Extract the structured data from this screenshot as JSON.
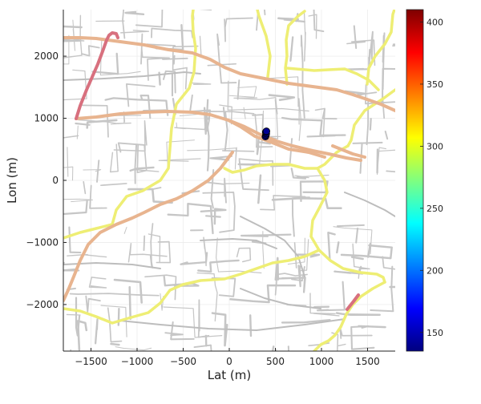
{
  "chart_data": {
    "type": "scatter",
    "title": "",
    "xlabel": "Lat (m)",
    "ylabel": "Lon (m)",
    "xlim": [
      -1800,
      1800
    ],
    "ylim": [
      -2750,
      2750
    ],
    "x_ticks": [
      -1500,
      -1000,
      -500,
      0,
      500,
      1000,
      1500
    ],
    "x_tick_labels": [
      "−1500",
      "−1000",
      "−500",
      "0",
      "500",
      "1000",
      "1500"
    ],
    "y_ticks": [
      -2000,
      -1000,
      0,
      1000,
      2000
    ],
    "y_tick_labels": [
      "−2000",
      "−1000",
      "0",
      "1000",
      "2000"
    ],
    "grid": true,
    "legend": "none",
    "background": "road map",
    "colorbar": {
      "colormap": "jet",
      "range": [
        135,
        410
      ],
      "ticks": [
        150,
        200,
        250,
        300,
        350,
        400
      ],
      "tick_labels": [
        "150",
        "200",
        "250",
        "300",
        "350",
        "400"
      ]
    },
    "points": [
      {
        "x": 392,
        "y": 705,
        "value": 140
      },
      {
        "x": 397,
        "y": 730,
        "value": 140
      },
      {
        "x": 401,
        "y": 752,
        "value": 140
      },
      {
        "x": 396,
        "y": 778,
        "value": 140
      },
      {
        "x": 403,
        "y": 790,
        "value": 140
      }
    ],
    "colors": {
      "major_road": "#e8b48f",
      "secondary_road": "#eeee74",
      "minor_road": "#c6c6c6",
      "highlight_route": "#d8707e",
      "point_fill": "#00008e"
    }
  }
}
